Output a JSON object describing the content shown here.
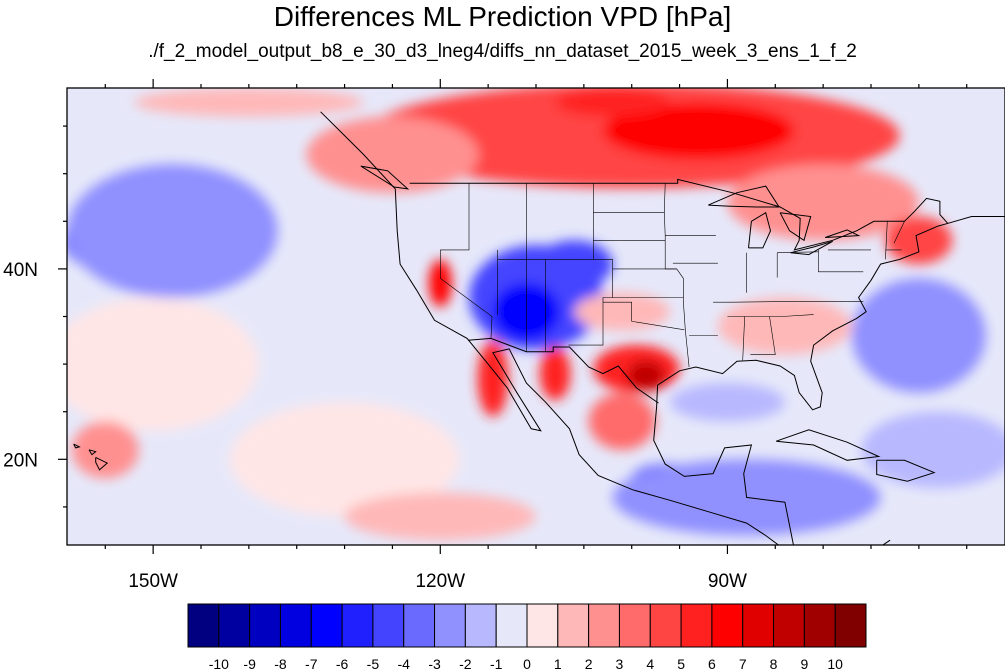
{
  "title": "Differences ML Prediction VPD [hPa]",
  "subtitle": "./f_2_model_output_b8_e_30_d3_lneg4/diffs_nn_dataset_2015_week_3_ens_1_f_2",
  "map": {
    "lon_range": [
      -159,
      -61
    ],
    "lat_range": [
      11,
      59
    ],
    "lon_ticks": [
      {
        "value": -150,
        "label": "150W"
      },
      {
        "value": -120,
        "label": "120W"
      },
      {
        "value": -90,
        "label": "90W"
      }
    ],
    "lat_ticks": [
      {
        "value": 40,
        "label": "40N"
      },
      {
        "value": 20,
        "label": "20N"
      }
    ],
    "background_color": "#e6e8fa",
    "features": [
      {
        "name": "canada-positive-band",
        "lon": -100,
        "lat": 54,
        "rlon": 28,
        "rlat": 5.5,
        "value": 4.5
      },
      {
        "name": "canada-positive-core",
        "lon": -93,
        "lat": 54.5,
        "rlon": 10,
        "rlat": 3,
        "value": 6.5
      },
      {
        "name": "hudson-positive",
        "lon": -102,
        "lat": 57.5,
        "rlon": 6,
        "rlat": 1.5,
        "value": 5.5
      },
      {
        "name": "great-lakes-positive",
        "lon": -80,
        "lat": 47,
        "rlon": 10,
        "rlat": 4,
        "value": 2.5
      },
      {
        "name": "new-england-positive",
        "lon": -70,
        "lat": 43,
        "rlon": 3.5,
        "rlat": 2.5,
        "value": 4.5
      },
      {
        "name": "pacific-nw-positive",
        "lon": -125,
        "lat": 52,
        "rlon": 9,
        "rlat": 4,
        "value": 2
      },
      {
        "name": "alaska-coast-positive",
        "lon": -140,
        "lat": 57.5,
        "rlon": 12,
        "rlat": 1.5,
        "value": 1.5
      },
      {
        "name": "pacific-negative",
        "lon": -151,
        "lat": 43,
        "rlon": 8.5,
        "rlat": 4,
        "value": -4
      },
      {
        "name": "pacific-negative-outer",
        "lon": -148,
        "lat": 44,
        "rlon": 11,
        "rlat": 7,
        "value": -2.5
      },
      {
        "name": "southwest-negative",
        "lon": -110,
        "lat": 37,
        "rlon": 7,
        "rlat": 5.5,
        "value": -5
      },
      {
        "name": "southwest-negative-core",
        "lon": -111,
        "lat": 35.5,
        "rlon": 3.5,
        "rlat": 3,
        "value": -7
      },
      {
        "name": "rockies-negative",
        "lon": -106,
        "lat": 40.5,
        "rlon": 4,
        "rlat": 2.5,
        "value": -5
      },
      {
        "name": "california-positive",
        "lon": -120,
        "lat": 38.5,
        "rlon": 1.2,
        "rlat": 2.5,
        "value": 6
      },
      {
        "name": "baja-positive",
        "lon": -114.5,
        "lat": 28.5,
        "rlon": 1.6,
        "rlat": 4,
        "value": 5
      },
      {
        "name": "sonora-positive",
        "lon": -108,
        "lat": 29,
        "rlon": 1.6,
        "rlat": 2.8,
        "value": 5
      },
      {
        "name": "texas-positive",
        "lon": -99.5,
        "lat": 29.5,
        "rlon": 4.5,
        "rlat": 2.5,
        "value": 5.5
      },
      {
        "name": "texas-positive-core",
        "lon": -98.5,
        "lat": 28.8,
        "rlon": 2,
        "rlat": 1.6,
        "value": 8
      },
      {
        "name": "mexico-positive",
        "lon": -101,
        "lat": 24,
        "rlon": 3.5,
        "rlat": 3,
        "value": 3
      },
      {
        "name": "central-mexico-negative",
        "lon": -96,
        "lat": 18,
        "rlon": 4,
        "rlat": 1.5,
        "value": -5
      },
      {
        "name": "guatemala-negative",
        "lon": -89.5,
        "lat": 17,
        "rlon": 2.5,
        "rlat": 2,
        "value": -6
      },
      {
        "name": "honduras-negative",
        "lon": -87,
        "lat": 15,
        "rlon": 1.5,
        "rlat": 1.2,
        "value": -5
      },
      {
        "name": "southern-negative-band",
        "lon": -88,
        "lat": 16,
        "rlon": 14,
        "rlat": 4,
        "value": -2.5
      },
      {
        "name": "kansas-positive",
        "lon": -101,
        "lat": 35.5,
        "rlon": 5,
        "rlat": 2,
        "value": 1.5
      },
      {
        "name": "southeast-positive",
        "lon": -84,
        "lat": 34,
        "rlon": 7,
        "rlat": 3,
        "value": 1.5
      },
      {
        "name": "gulf-negative",
        "lon": -90,
        "lat": 26,
        "rlon": 6,
        "rlat": 2,
        "value": -1.5
      },
      {
        "name": "atlantic-negative",
        "lon": -70,
        "lat": 33,
        "rlon": 7,
        "rlat": 6,
        "value": -2.5
      },
      {
        "name": "caribbean-negative",
        "lon": -68,
        "lat": 21,
        "rlon": 8,
        "rlat": 4,
        "value": -2
      },
      {
        "name": "subtropical-pacific-positive",
        "lon": -150,
        "lat": 30,
        "rlon": 11,
        "rlat": 7,
        "value": 0.6
      },
      {
        "name": "hawaii-positive",
        "lon": -155,
        "lat": 21,
        "rlon": 3.5,
        "rlat": 3,
        "value": 2
      },
      {
        "name": "tropical-pacific-positive",
        "lon": -130,
        "lat": 20,
        "rlon": 12,
        "rlat": 6,
        "value": 0.6
      },
      {
        "name": "equatorial-pacific-positive",
        "lon": -120,
        "lat": 14,
        "rlon": 10,
        "rlat": 2.5,
        "value": 1
      }
    ]
  },
  "colorbar": {
    "labels": [
      "-10",
      "-9",
      "-8",
      "-7",
      "-6",
      "-5",
      "-4",
      "-3",
      "-2",
      "-1",
      "0",
      "1",
      "2",
      "3",
      "4",
      "5",
      "6",
      "7",
      "8",
      "9",
      "10"
    ],
    "colors": [
      "#000080",
      "#0000a0",
      "#0000c0",
      "#0000e0",
      "#0000ff",
      "#2020ff",
      "#4444ff",
      "#6a6aff",
      "#9090ff",
      "#b8b8ff",
      "#e6e8fa",
      "#ffe6e6",
      "#ffb8b8",
      "#ff9090",
      "#ff6a6a",
      "#ff4444",
      "#ff2020",
      "#ff0000",
      "#e00000",
      "#c00000",
      "#a00000",
      "#800000"
    ]
  }
}
